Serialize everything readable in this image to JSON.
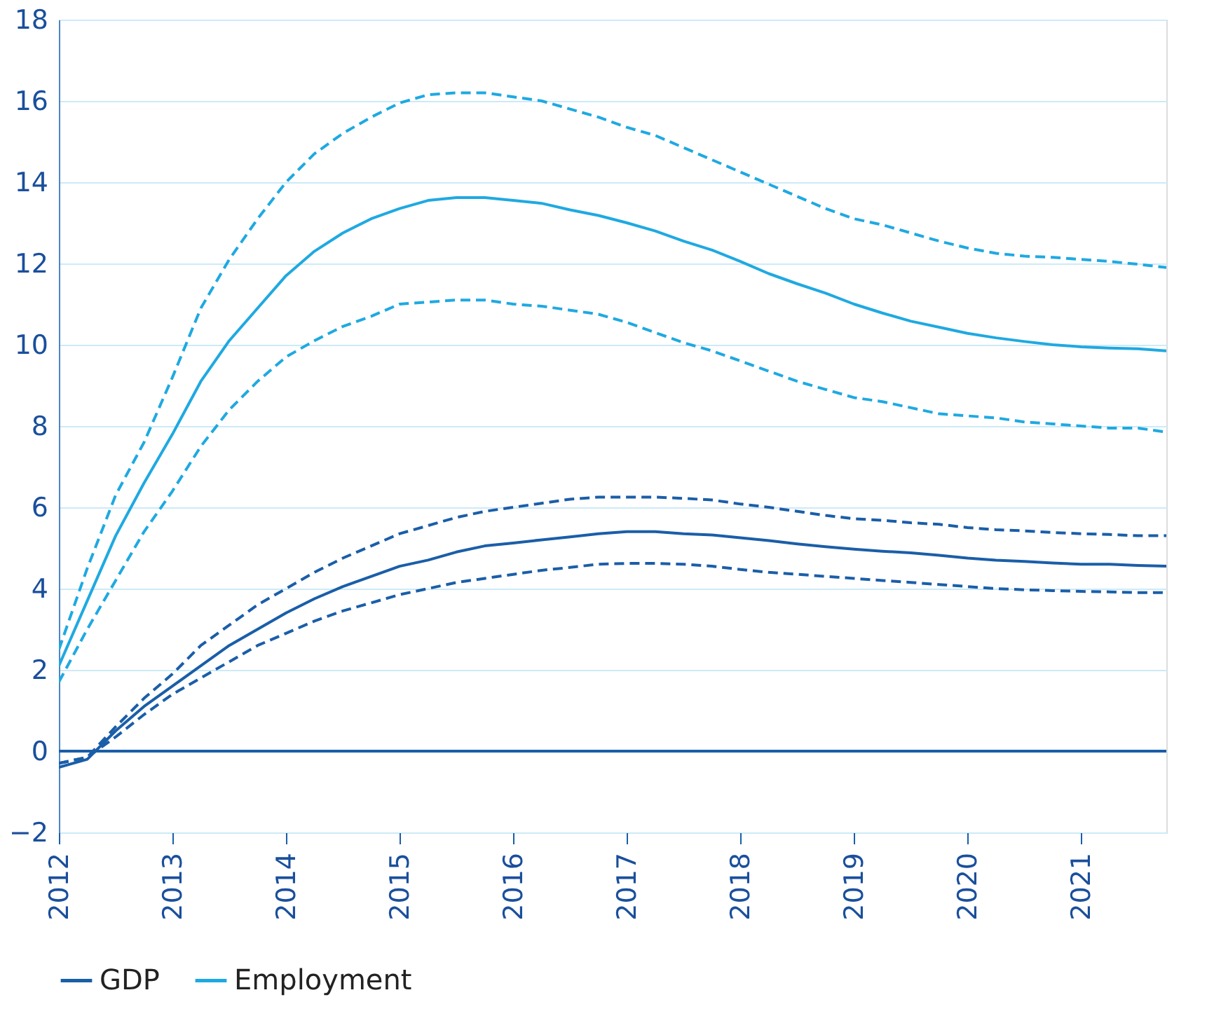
{
  "chart_data": {
    "type": "line",
    "x": [
      2012,
      2012.25,
      2012.5,
      2012.75,
      2013,
      2013.25,
      2013.5,
      2013.75,
      2014,
      2014.25,
      2014.5,
      2014.75,
      2015,
      2015.25,
      2015.5,
      2015.75,
      2016,
      2016.25,
      2016.5,
      2016.75,
      2017,
      2017.25,
      2017.5,
      2017.75,
      2018,
      2018.25,
      2018.5,
      2018.75,
      2019,
      2019.25,
      2019.5,
      2019.75,
      2020,
      2020.25,
      2020.5,
      2020.75,
      2021,
      2021.25,
      2021.5,
      2021.75
    ],
    "series": [
      {
        "name": "GDP",
        "color": "#1a5ea8",
        "line_style": "solid",
        "values": [
          -0.4,
          -0.2,
          0.5,
          1.1,
          1.6,
          2.1,
          2.6,
          3.0,
          3.4,
          3.75,
          4.05,
          4.3,
          4.55,
          4.7,
          4.9,
          5.05,
          5.12,
          5.2,
          5.27,
          5.35,
          5.4,
          5.4,
          5.35,
          5.32,
          5.25,
          5.18,
          5.1,
          5.03,
          4.97,
          4.92,
          4.88,
          4.82,
          4.75,
          4.7,
          4.67,
          4.63,
          4.6,
          4.6,
          4.57,
          4.55
        ]
      },
      {
        "color": "#1a5ea8",
        "line_style": "dashed",
        "values": [
          -0.3,
          -0.15,
          0.6,
          1.3,
          1.9,
          2.6,
          3.1,
          3.6,
          4.0,
          4.4,
          4.75,
          5.05,
          5.35,
          5.55,
          5.75,
          5.9,
          6.0,
          6.1,
          6.2,
          6.25,
          6.25,
          6.25,
          6.22,
          6.18,
          6.08,
          6.0,
          5.9,
          5.8,
          5.72,
          5.68,
          5.62,
          5.58,
          5.5,
          5.45,
          5.42,
          5.38,
          5.35,
          5.33,
          5.3,
          5.3
        ]
      },
      {
        "color": "#1a5ea8",
        "line_style": "dashed",
        "values": [
          -0.3,
          -0.15,
          0.35,
          0.9,
          1.4,
          1.8,
          2.2,
          2.6,
          2.9,
          3.2,
          3.45,
          3.65,
          3.85,
          4.0,
          4.15,
          4.25,
          4.35,
          4.45,
          4.52,
          4.6,
          4.62,
          4.62,
          4.6,
          4.55,
          4.47,
          4.4,
          4.35,
          4.3,
          4.25,
          4.2,
          4.15,
          4.1,
          4.05,
          4.0,
          3.97,
          3.95,
          3.93,
          3.92,
          3.9,
          3.9
        ]
      },
      {
        "name": "Employment",
        "color": "#1fa9e1",
        "line_style": "solid",
        "values": [
          2.1,
          3.7,
          5.3,
          6.6,
          7.8,
          9.1,
          10.1,
          10.9,
          11.7,
          12.3,
          12.75,
          13.1,
          13.35,
          13.55,
          13.62,
          13.62,
          13.55,
          13.48,
          13.32,
          13.18,
          13.0,
          12.8,
          12.55,
          12.33,
          12.05,
          11.75,
          11.5,
          11.27,
          11.0,
          10.78,
          10.58,
          10.43,
          10.28,
          10.17,
          10.08,
          10.0,
          9.95,
          9.92,
          9.9,
          9.85
        ]
      },
      {
        "color": "#1fa9e1",
        "line_style": "dashed",
        "values": [
          2.5,
          4.5,
          6.3,
          7.6,
          9.2,
          10.9,
          12.1,
          13.1,
          14.0,
          14.7,
          15.2,
          15.6,
          15.95,
          16.15,
          16.2,
          16.2,
          16.1,
          16.0,
          15.8,
          15.6,
          15.35,
          15.15,
          14.85,
          14.55,
          14.25,
          13.95,
          13.65,
          13.35,
          13.1,
          12.95,
          12.75,
          12.55,
          12.38,
          12.25,
          12.18,
          12.15,
          12.1,
          12.05,
          11.98,
          11.9
        ]
      },
      {
        "color": "#1fa9e1",
        "line_style": "dashed",
        "values": [
          1.7,
          3.0,
          4.2,
          5.4,
          6.4,
          7.5,
          8.4,
          9.1,
          9.7,
          10.1,
          10.45,
          10.7,
          11.0,
          11.05,
          11.1,
          11.1,
          11.0,
          10.95,
          10.85,
          10.75,
          10.55,
          10.3,
          10.05,
          9.85,
          9.6,
          9.35,
          9.1,
          8.9,
          8.7,
          8.6,
          8.45,
          8.3,
          8.25,
          8.2,
          8.1,
          8.05,
          8.0,
          7.95,
          7.95,
          7.85
        ]
      }
    ],
    "xlim": [
      2012,
      2021.75
    ],
    "xticks": [
      2012,
      2013,
      2014,
      2015,
      2016,
      2017,
      2018,
      2019,
      2020,
      2021
    ],
    "ylim": [
      -2,
      18
    ],
    "yticks": [
      -2,
      0,
      2,
      4,
      6,
      8,
      10,
      12,
      14,
      16,
      18
    ],
    "ref_lines": [
      {
        "axis": "y",
        "value": 0,
        "color": "#1a5ea8"
      }
    ],
    "grid": "y",
    "legend": "bottom"
  }
}
